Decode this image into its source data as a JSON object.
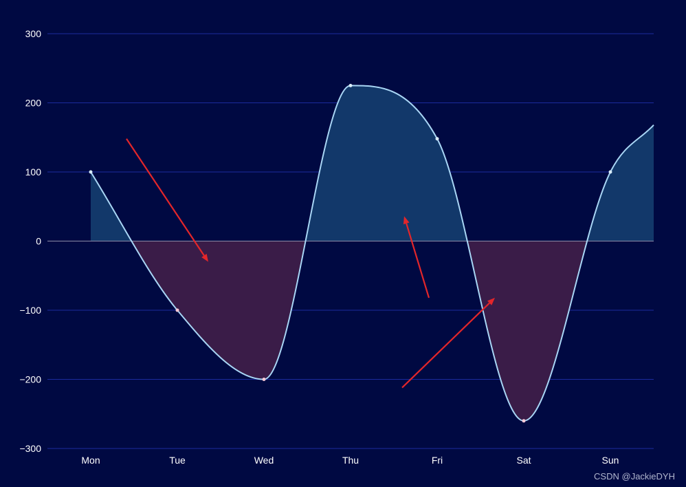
{
  "colors": {
    "background": "#000942",
    "grid": "#1c2b9e",
    "zero_line": "#8c8ca8",
    "line": "#a9d6f5",
    "fill_positive": "#12386a",
    "fill_negative": "#3a1c48",
    "tick_text": "#ffffff",
    "point_positive": "#d8ecf8",
    "point_negative": "#f7c9d6",
    "annotation": "#e3262a"
  },
  "chart_data": {
    "type": "line",
    "title": "",
    "xlabel": "",
    "ylabel": "",
    "categories": [
      "Mon",
      "Tue",
      "Wed",
      "Thu",
      "Fri",
      "Sat",
      "Sun"
    ],
    "series": [
      {
        "values": [
          100,
          -100,
          -200,
          225,
          148,
          -260,
          100
        ],
        "extends_right_to": 168
      }
    ],
    "ylim": [
      -300,
      300
    ],
    "yticks": [
      -300,
      -200,
      -100,
      0,
      100,
      200,
      300
    ],
    "ytick_labels": [
      "−300",
      "−200",
      "−100",
      "0",
      "100",
      "200",
      "300"
    ],
    "grid": true,
    "smooth": true,
    "area_fill": "split at zero: positive area blue, negative area purple",
    "annotations": [
      {
        "type": "arrow",
        "from": [
          "Mon-Tue",
          148
        ],
        "to": [
          "Tue",
          -30
        ]
      },
      {
        "type": "arrow",
        "from": [
          "Thu-Fri",
          -82
        ],
        "to": [
          "Thu-Fri",
          36
        ]
      },
      {
        "type": "arrow",
        "from": [
          "Thu-Fri",
          -212
        ],
        "to": [
          "Fri-Sat",
          -82
        ]
      }
    ]
  },
  "watermark": "CSDN @JackieDYH"
}
